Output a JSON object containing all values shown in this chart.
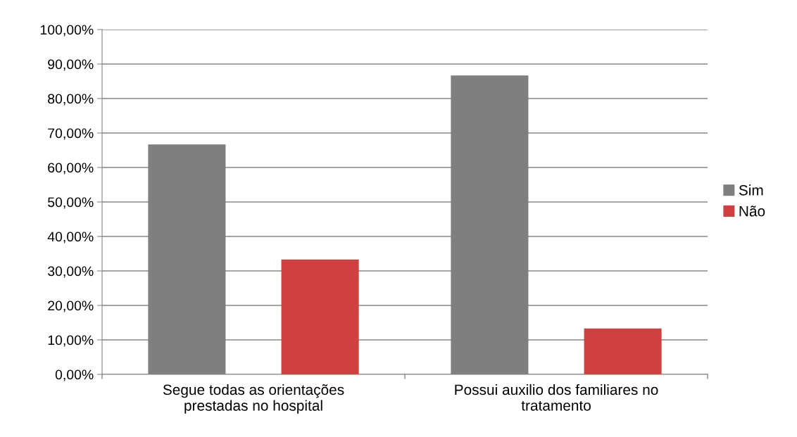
{
  "chart_data": {
    "type": "bar",
    "categories": [
      "Segue todas as orientações\nprestadas no hospital",
      "Possui auxilio dos familiares no\ntratamento"
    ],
    "series": [
      {
        "name": "Sim",
        "color": "#7f7f7f",
        "values": [
          66.7,
          86.7
        ]
      },
      {
        "name": "Não",
        "color": "#d04040",
        "values": [
          33.3,
          13.3
        ]
      }
    ],
    "ylim": [
      0,
      100
    ],
    "yticks": [
      {
        "value": 0,
        "label": "0,00%"
      },
      {
        "value": 10,
        "label": "10,00%"
      },
      {
        "value": 20,
        "label": "20,00%"
      },
      {
        "value": 30,
        "label": "30,00%"
      },
      {
        "value": 40,
        "label": "40,00%"
      },
      {
        "value": 50,
        "label": "50,00%"
      },
      {
        "value": 60,
        "label": "60,00%"
      },
      {
        "value": 70,
        "label": "70,00%"
      },
      {
        "value": 80,
        "label": "80,00%"
      },
      {
        "value": 90,
        "label": "90,00%"
      },
      {
        "value": 100,
        "label": "100,00%"
      }
    ],
    "grid": "y",
    "legend": "right"
  }
}
